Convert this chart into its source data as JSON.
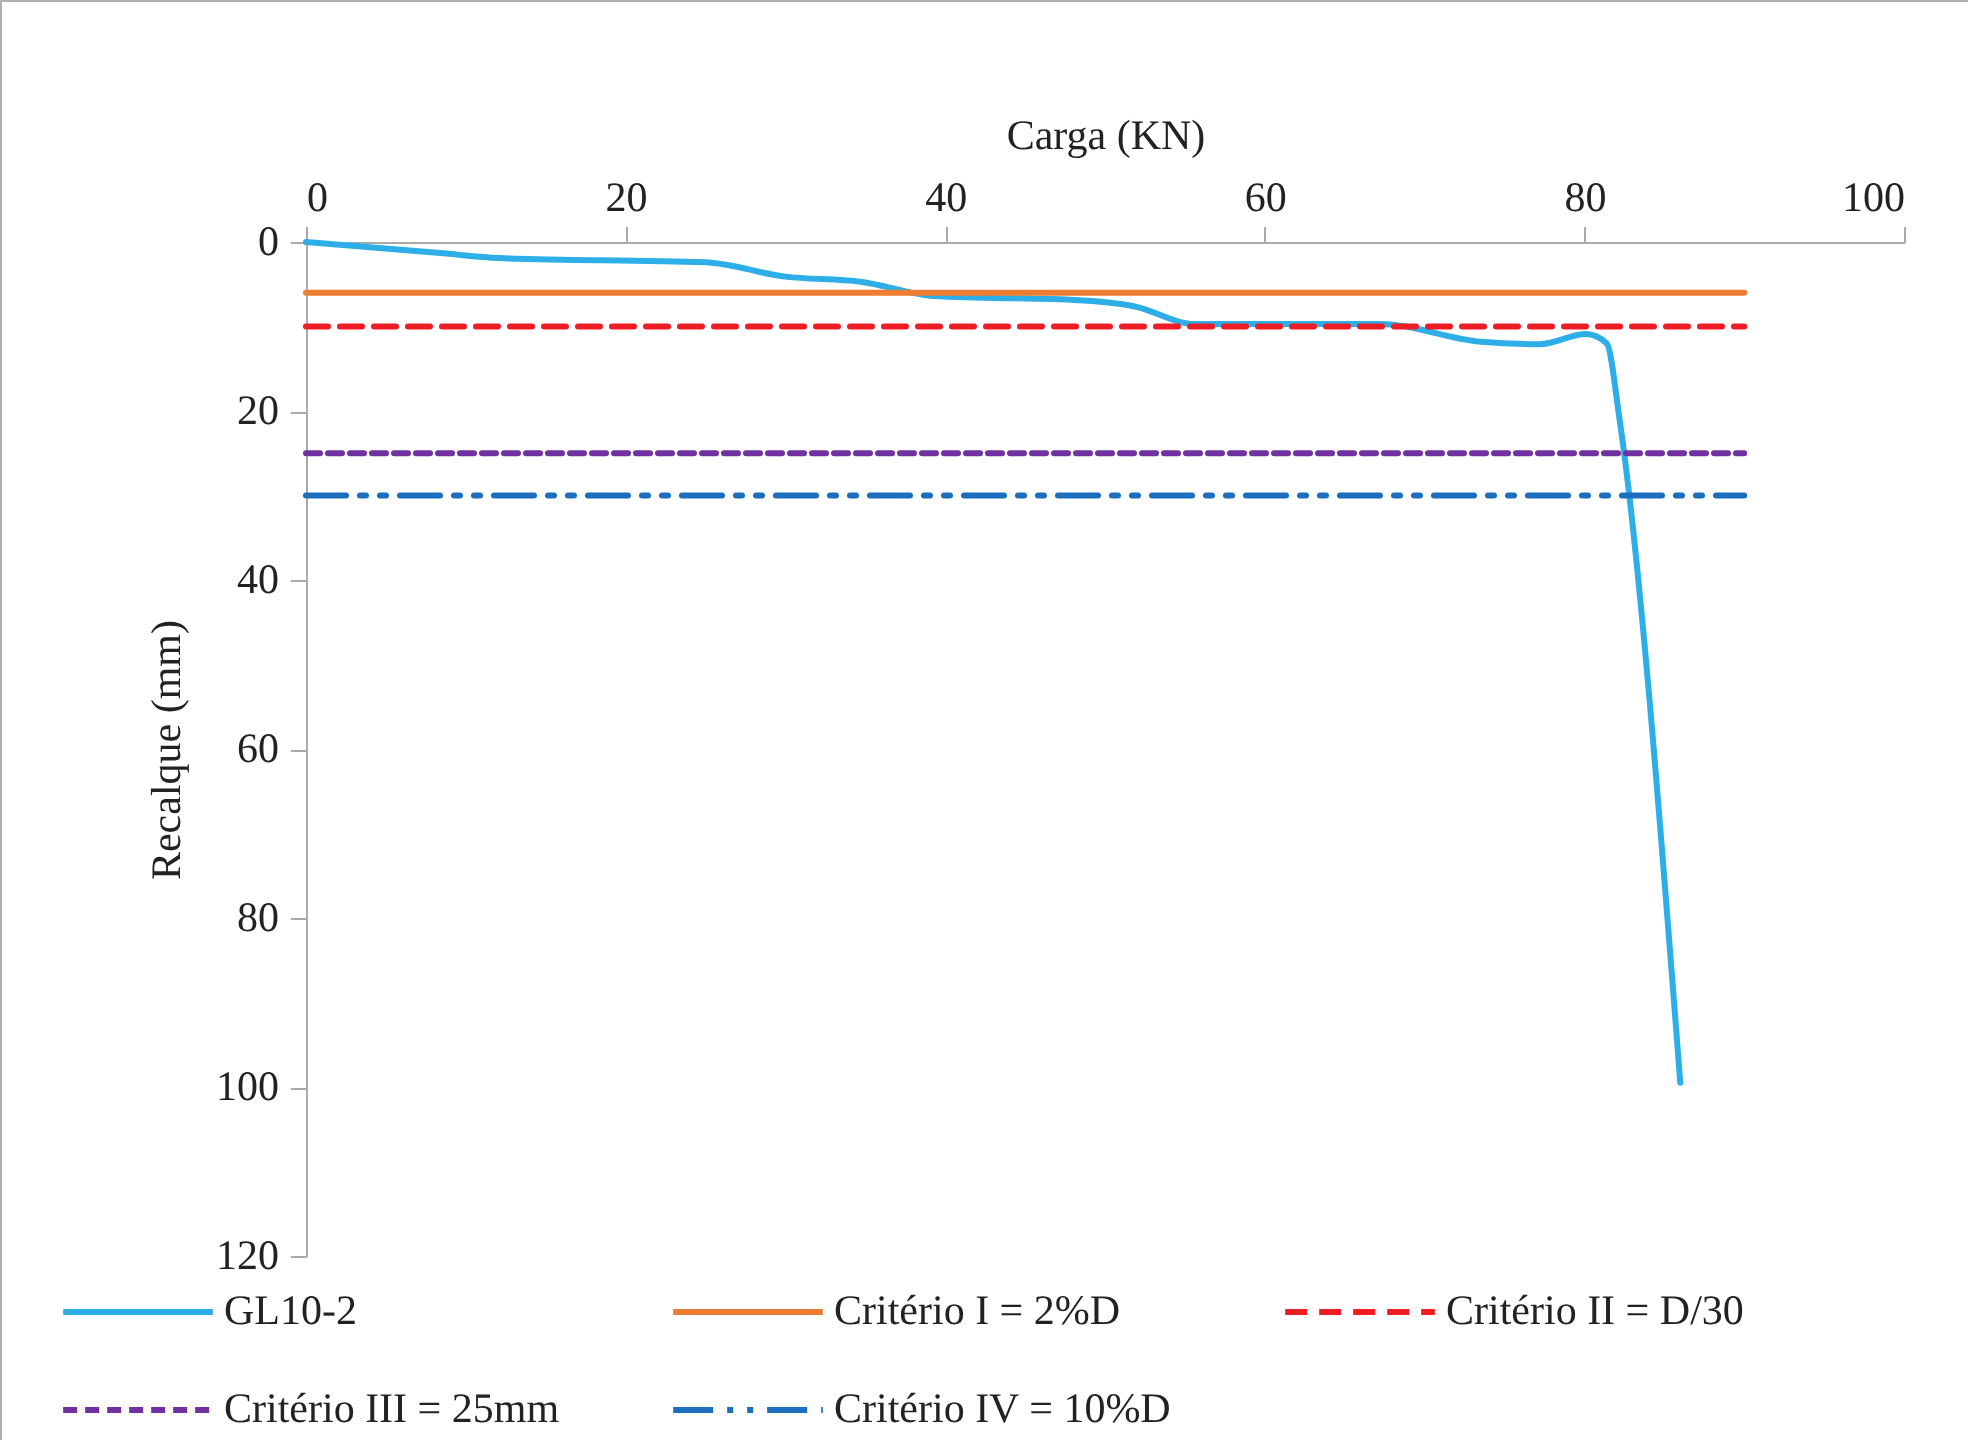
{
  "chart_data": {
    "type": "line",
    "xlabel": "Carga (KN)",
    "ylabel": "Recalque (mm)",
    "xlim": [
      0,
      100
    ],
    "xticks": [
      0,
      20,
      40,
      60,
      80,
      100
    ],
    "ylim": [
      120,
      0
    ],
    "yticks": [
      0,
      20,
      40,
      60,
      80,
      100,
      120
    ],
    "grid": false,
    "legend": "bottom",
    "series": [
      {
        "name": "GL10-2",
        "color": "#2eaee6",
        "line_style": "solid",
        "x": [
          0,
          8.4,
          12.1,
          25,
          30,
          34.7,
          39.3,
          48.4,
          51.8,
          55.6,
          67.2,
          73.5,
          77.2,
          80.1,
          81.4,
          82.2,
          86
        ],
        "values": [
          0,
          1.3,
          1.9,
          2.4,
          4.1,
          4.7,
          6.4,
          6.9,
          7.6,
          9.7,
          9.7,
          11.8,
          12.1,
          10.9,
          12,
          21,
          99.5
        ]
      },
      {
        "name": "Critério I = 2%D",
        "color": "#ed7d31",
        "line_style": "solid",
        "x": [
          0,
          90
        ],
        "values": [
          6,
          6
        ]
      },
      {
        "name": "Critério II = D/30",
        "color": "#ee1c25",
        "line_style": "dashed",
        "x": [
          0,
          90
        ],
        "values": [
          10,
          10
        ]
      },
      {
        "name": "Critério III = 25mm",
        "color": "#7030a0",
        "line_style": "dotted",
        "x": [
          0,
          90
        ],
        "values": [
          25,
          25
        ]
      },
      {
        "name": "Critério IV = 10%D",
        "color": "#1b6fbe",
        "line_style": "dashdot",
        "x": [
          0,
          90
        ],
        "values": [
          30,
          30
        ]
      }
    ]
  }
}
